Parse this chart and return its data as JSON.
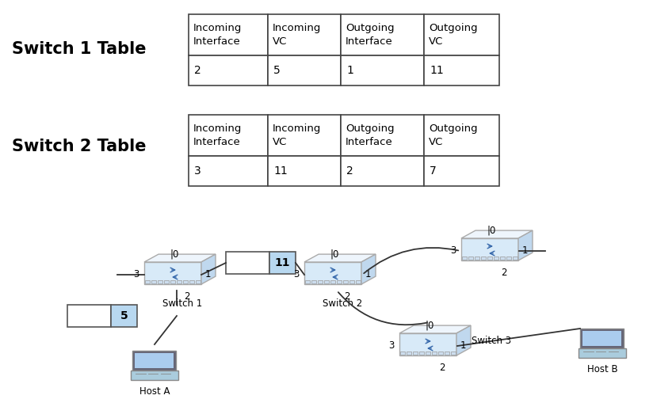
{
  "title1": "Switch 1 Table",
  "title2": "Switch 2 Table",
  "table1_headers": [
    "Incoming\nInterface",
    "Incoming\nVC",
    "Outgoing\nInterface",
    "Outgoing\nVC"
  ],
  "table1_data": [
    [
      "2",
      "5",
      "1",
      "11"
    ]
  ],
  "table2_headers": [
    "Incoming\nInterface",
    "Incoming\nVC",
    "Outgoing\nInterface",
    "Outgoing\nVC"
  ],
  "table2_data": [
    [
      "3",
      "11",
      "2",
      "7"
    ]
  ],
  "bg_color": "#ffffff",
  "border_color": "#444444",
  "title_fontsize": 15,
  "table_fontsize": 9.5,
  "switch_body_color": "#d8eaf8",
  "switch_edge_color": "#aaaaaa",
  "switch_top_color": "#eef5fc",
  "switch_side_color": "#c0d8ee",
  "vc_box_color": "#b8d8f0",
  "line_color": "#333333",
  "host_screen_color": "#778899",
  "host_blue_color": "#aaccee"
}
